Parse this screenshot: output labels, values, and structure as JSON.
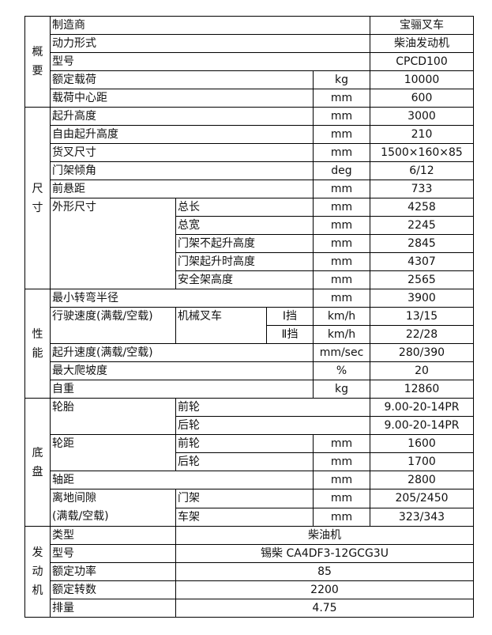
{
  "overview": {
    "label": "概\n要",
    "manufacturer": {
      "name": "制造商",
      "value": "宝骊叉车"
    },
    "power": {
      "name": "动力形式",
      "value": "柴油发动机"
    },
    "model": {
      "name": "型号",
      "value": "CPCD100"
    },
    "rated_load": {
      "name": "额定载荷",
      "unit": "kg",
      "value": "10000"
    },
    "load_center": {
      "name": "载荷中心距",
      "unit": "mm",
      "value": "600"
    }
  },
  "dimensions": {
    "label": "尺\n寸",
    "lift_height": {
      "name": "起升高度",
      "unit": "mm",
      "value": "3000"
    },
    "free_lift": {
      "name": "自由起升高度",
      "unit": "mm",
      "value": "210"
    },
    "fork_size": {
      "name": "货叉尺寸",
      "unit": "mm",
      "value": "1500×160×85"
    },
    "tilt": {
      "name": "门架倾角",
      "unit": "deg",
      "value": "6/12"
    },
    "front_overhang": {
      "name": "前悬距",
      "unit": "mm",
      "value": "733"
    },
    "overall": {
      "name": "外形尺寸",
      "items": [
        {
          "name": "总长",
          "unit": "mm",
          "value": "4258"
        },
        {
          "name": "总宽",
          "unit": "mm",
          "value": "2245"
        },
        {
          "name": "门架不起升高度",
          "unit": "mm",
          "value": "2845"
        },
        {
          "name": "门架起升时高度",
          "unit": "mm",
          "value": "4307"
        },
        {
          "name": "安全架高度",
          "unit": "mm",
          "value": "2565"
        }
      ]
    }
  },
  "performance": {
    "label": "性\n能",
    "turning_radius": {
      "name": "最小转弯半径",
      "unit": "mm",
      "value": "3900"
    },
    "travel_speed": {
      "name": "行驶速度(满载/空载)",
      "type": "机械叉车",
      "gears": [
        {
          "name": "Ⅰ挡",
          "unit": "km/h",
          "value": "13/15"
        },
        {
          "name": "Ⅱ挡",
          "unit": "km/h",
          "value": "22/28"
        }
      ]
    },
    "lift_speed": {
      "name": "起升速度(满载/空载)",
      "unit": "mm/sec",
      "value": "280/390"
    },
    "gradeability": {
      "name": "最大爬坡度",
      "unit": "%",
      "value": "20"
    },
    "weight": {
      "name": "自重",
      "unit": "kg",
      "value": "12860"
    }
  },
  "chassis": {
    "label": "底\n盘",
    "tyres": {
      "name": "轮胎",
      "front": {
        "name": "前轮",
        "value": "9.00-20-14PR"
      },
      "rear": {
        "name": "后轮",
        "value": "9.00-20-14PR"
      }
    },
    "tread": {
      "name": "轮距",
      "front": {
        "name": "前轮",
        "unit": "mm",
        "value": "1600"
      },
      "rear": {
        "name": "后轮",
        "unit": "mm",
        "value": "1700"
      }
    },
    "wheelbase": {
      "name": "轴距",
      "unit": "mm",
      "value": "2800"
    },
    "clearance": {
      "name": "离地间隙\n(满载/空载)",
      "mast": {
        "name": "门架",
        "unit": "mm",
        "value": "205/2450"
      },
      "frame": {
        "name": "车架",
        "unit": "mm",
        "value": "323/343"
      }
    }
  },
  "engine": {
    "label": "发\n动\n机",
    "type": {
      "name": "类型",
      "value": "柴油机"
    },
    "model": {
      "name": "型号",
      "value": "锡柴 CA4DF3-12GCG3U"
    },
    "power": {
      "name": "额定功率",
      "value": "85"
    },
    "speed": {
      "name": "额定转数",
      "value": "2200"
    },
    "displacement": {
      "name": "排量",
      "value": "4.75"
    }
  }
}
